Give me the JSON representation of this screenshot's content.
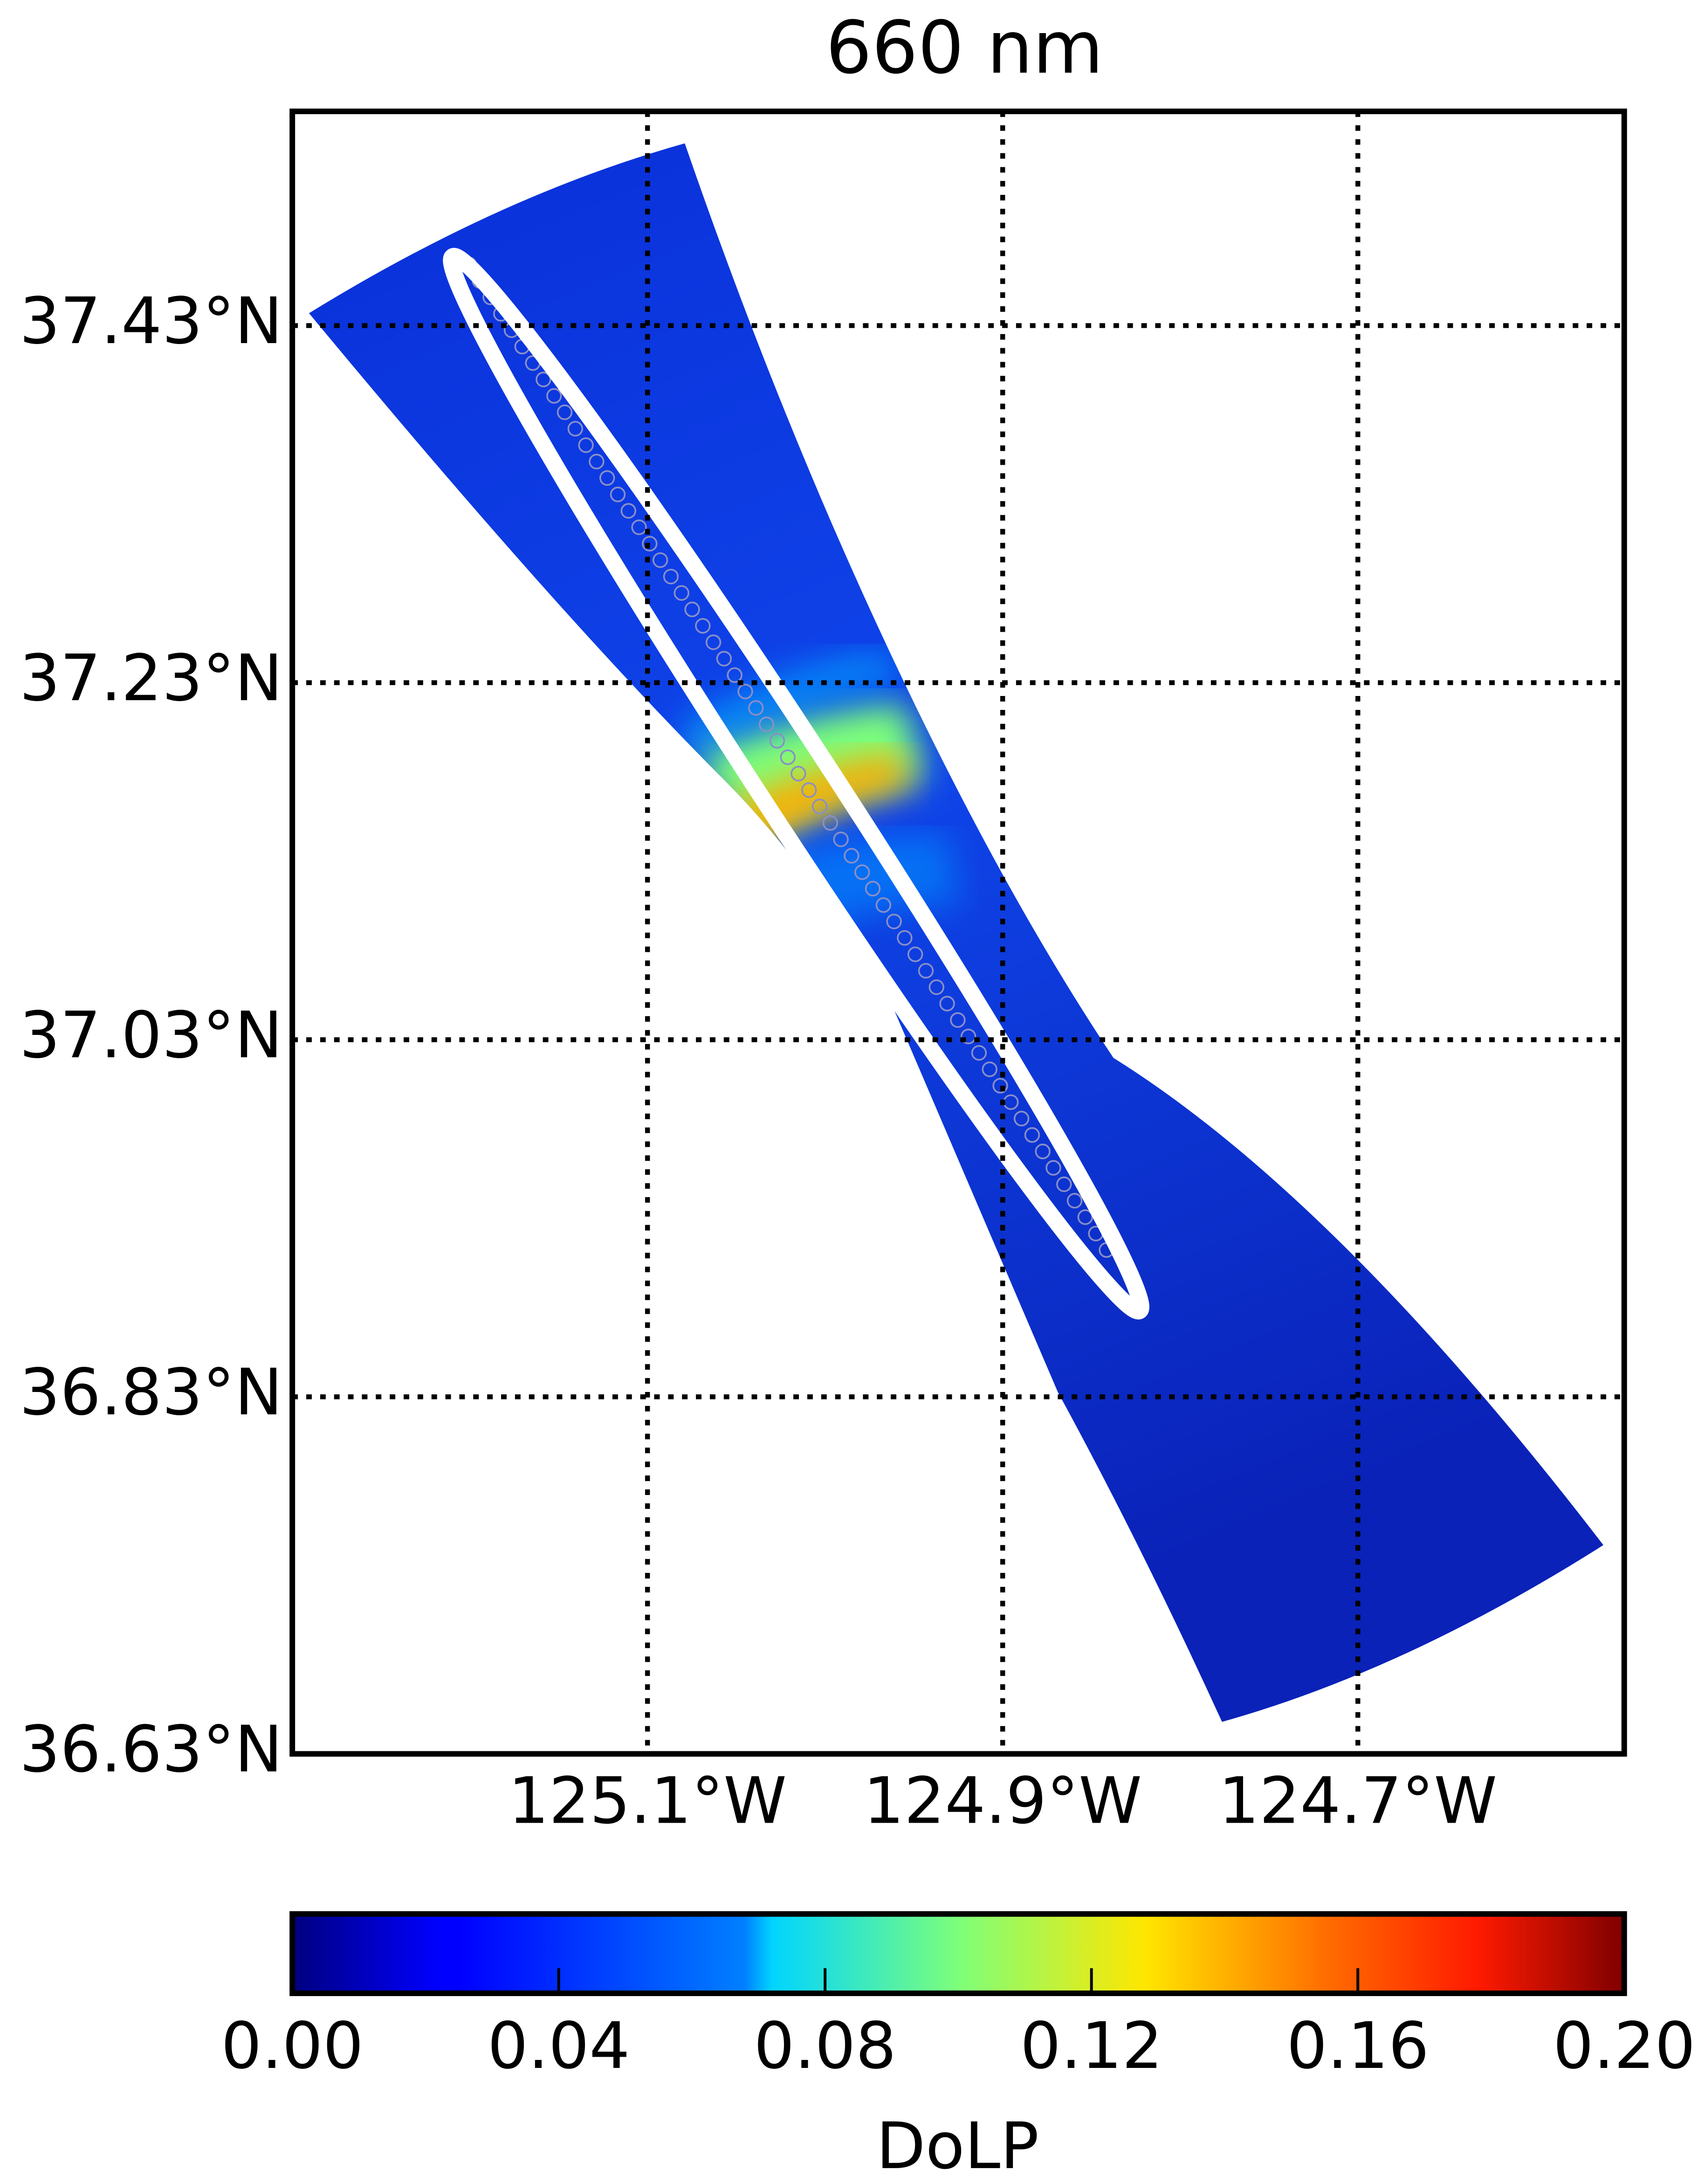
{
  "chart_data": {
    "type": "map",
    "title": "660 nm",
    "xlim": [
      -125.3,
      -124.55
    ],
    "xticks": [
      {
        "value": -125.1,
        "label": "125.1°W"
      },
      {
        "value": -124.9,
        "label": "124.9°W"
      },
      {
        "value": -124.7,
        "label": "124.7°W"
      }
    ],
    "ylim": [
      36.63,
      37.55
    ],
    "yticks": [
      {
        "value": 36.63,
        "label": "36.63°N"
      },
      {
        "value": 36.83,
        "label": "36.83°N"
      },
      {
        "value": 37.03,
        "label": "37.03°N"
      },
      {
        "value": 37.23,
        "label": "37.23°N"
      },
      {
        "value": 37.43,
        "label": "37.43°N"
      }
    ],
    "grid": true,
    "colorbar": {
      "label": "DoLP",
      "lim": [
        0,
        0.2
      ],
      "ticks": [
        {
          "value": 0,
          "label": "0.00"
        },
        0.04,
        0.08,
        0.12,
        0.16,
        {
          "value": 0.2,
          "label": "0.20"
        }
      ]
    }
  }
}
